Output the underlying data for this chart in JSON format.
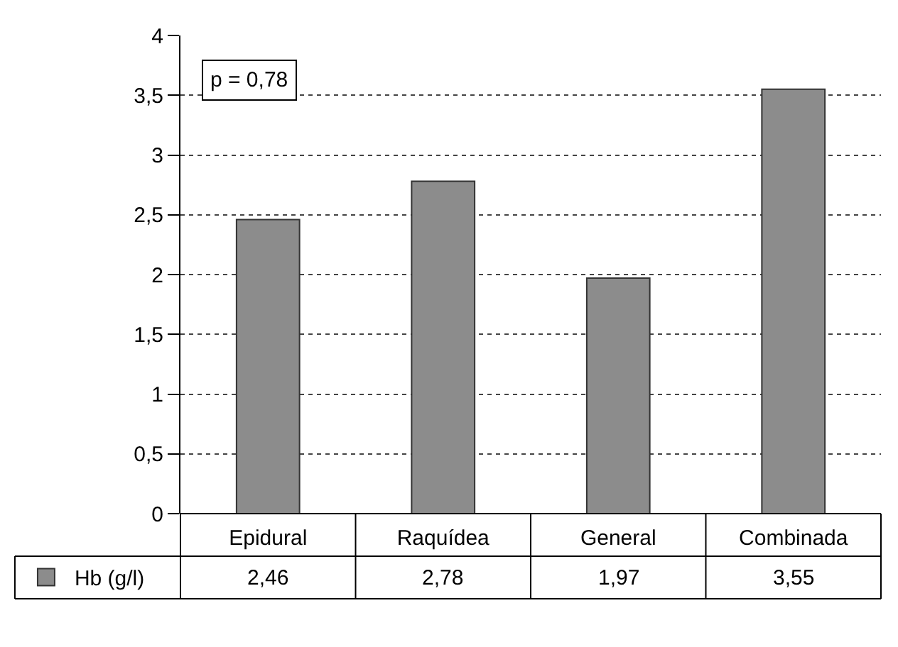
{
  "chart_data": {
    "type": "bar",
    "categories": [
      "Epidural",
      "Raquídea",
      "General",
      "Combinada"
    ],
    "series": [
      {
        "name": "Hb (g/l)",
        "color": "#8c8c8c",
        "values": [
          2.46,
          2.78,
          1.97,
          3.55
        ],
        "value_labels": [
          "2,46",
          "2,78",
          "1,97",
          "3,55"
        ]
      }
    ],
    "ylim": [
      0,
      4
    ],
    "yticks": [
      0,
      {
        "value": 0.5,
        "label": "0,5"
      },
      1,
      {
        "value": 1.5,
        "label": "1,5"
      },
      2,
      {
        "value": 2.5,
        "label": "2,5"
      },
      3,
      {
        "value": 3.5,
        "label": "3,5"
      },
      4
    ],
    "grid": "y",
    "line_style": "dotted",
    "legend": "bottom left",
    "annotations": [
      "p = 0,78"
    ]
  }
}
